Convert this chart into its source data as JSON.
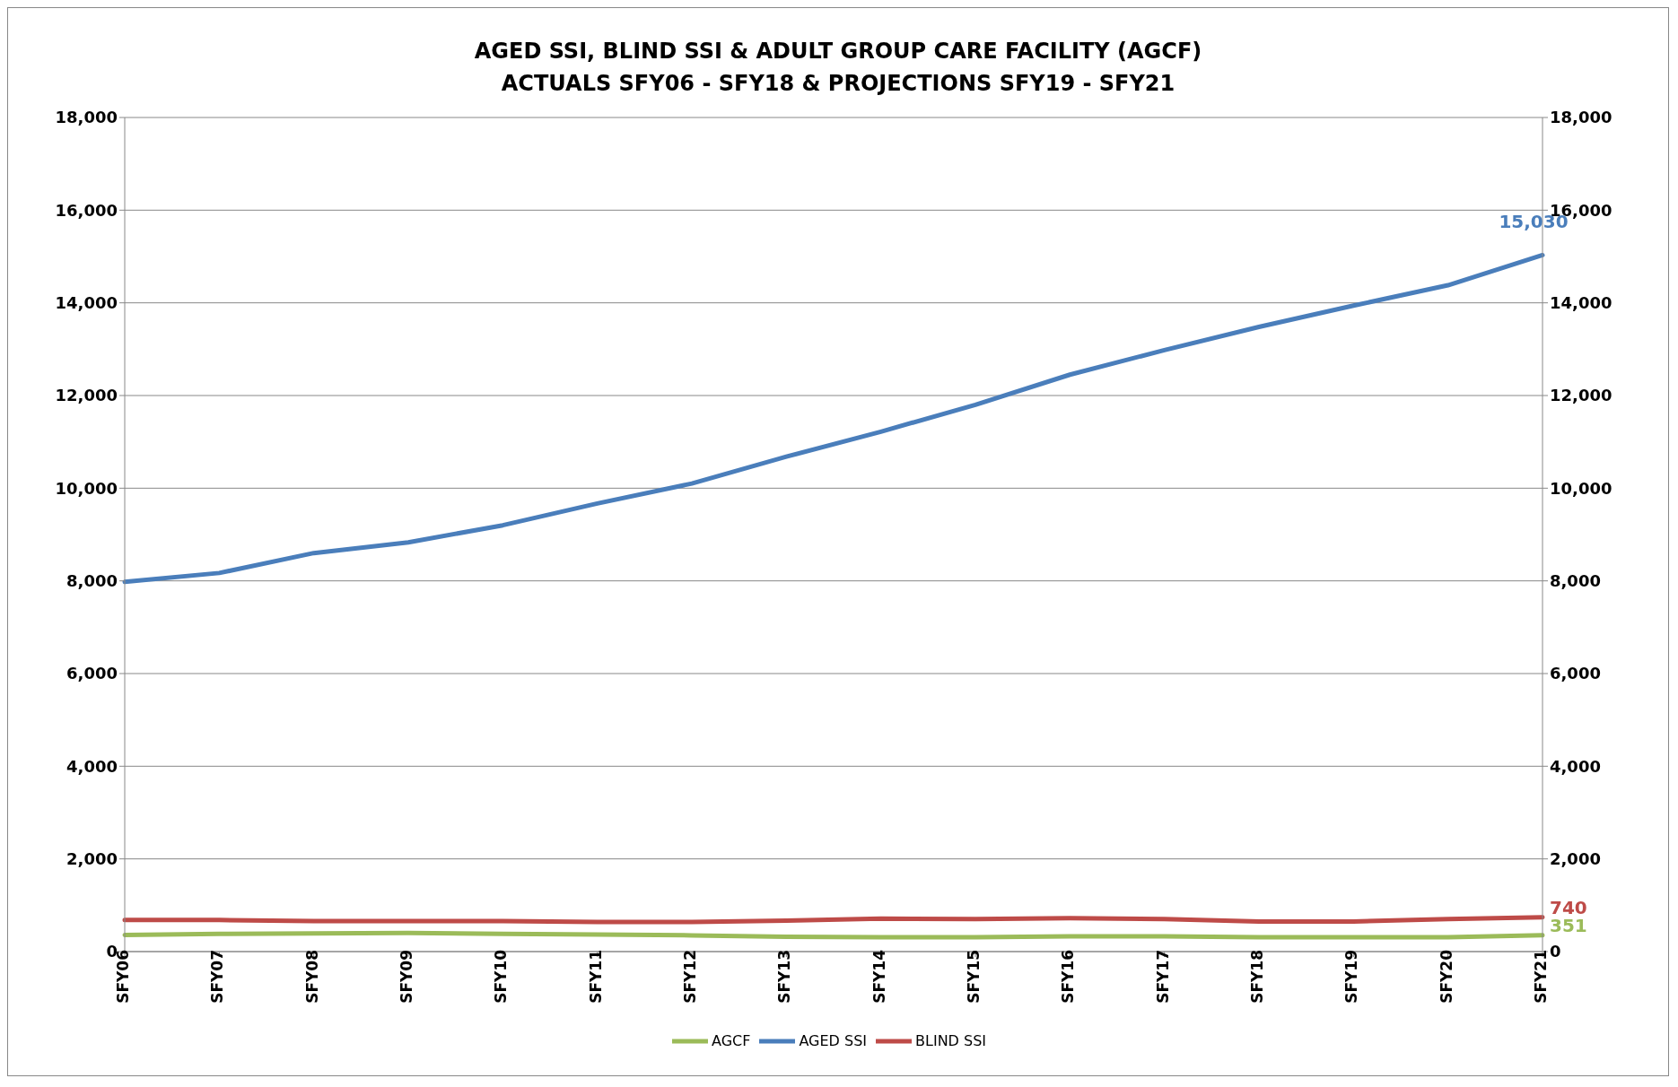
{
  "chart_data": {
    "type": "line",
    "title": "AGED SSI, BLIND SSI & ADULT GROUP CARE FACILITY (AGCF)",
    "subtitle": "ACTUALS SFY06 - SFY18 & PROJECTIONS SFY19 - SFY21",
    "categories": [
      "SFY06",
      "SFY07",
      "SFY08",
      "SFY09",
      "SFY10",
      "SFY11",
      "SFY12",
      "SFY13",
      "SFY14",
      "SFY15",
      "SFY16",
      "SFY17",
      "SFY18",
      "SFY19",
      "SFY20",
      "SFY21"
    ],
    "series": [
      {
        "name": "AGED SSI",
        "color": "#4a7ebb",
        "values": [
          7980,
          8170,
          8600,
          8830,
          9200,
          9670,
          10100,
          10680,
          11220,
          11800,
          12450,
          12980,
          13480,
          13940,
          14380,
          15030
        ],
        "value_labels": [
          null,
          null,
          null,
          null,
          null,
          null,
          null,
          null,
          null,
          null,
          null,
          null,
          null,
          null,
          null,
          "15,030"
        ]
      },
      {
        "name": "AGCF",
        "color": "#9bbb59",
        "values": [
          360,
          380,
          390,
          400,
          380,
          370,
          350,
          320,
          310,
          310,
          330,
          330,
          310,
          310,
          310,
          351
        ],
        "value_labels": [
          null,
          null,
          null,
          null,
          null,
          null,
          null,
          null,
          null,
          null,
          null,
          null,
          null,
          null,
          null,
          "351"
        ]
      },
      {
        "name": "BLIND SSI",
        "color": "#be4b48",
        "values": [
          680,
          680,
          660,
          660,
          660,
          640,
          640,
          670,
          710,
          700,
          720,
          700,
          650,
          650,
          700,
          740
        ],
        "value_labels": [
          null,
          null,
          null,
          null,
          null,
          null,
          null,
          null,
          null,
          null,
          null,
          null,
          null,
          null,
          null,
          "740"
        ]
      }
    ],
    "ylim": [
      0,
      18000
    ],
    "yticks": [
      {
        "value": 0,
        "label": "0"
      },
      {
        "value": 2000,
        "label": "2,000"
      },
      {
        "value": 4000,
        "label": "4,000"
      },
      {
        "value": 6000,
        "label": "6,000"
      },
      {
        "value": 8000,
        "label": "8,000"
      },
      {
        "value": 10000,
        "label": "10,000"
      },
      {
        "value": 12000,
        "label": "12,000"
      },
      {
        "value": 14000,
        "label": "14,000"
      },
      {
        "value": 16000,
        "label": "16,000"
      },
      {
        "value": 18000,
        "label": "18,000"
      }
    ],
    "y2lim": [
      0,
      18000
    ],
    "y2ticks": [
      {
        "value": 0,
        "label": "0"
      },
      {
        "value": 2000,
        "label": "2,000"
      },
      {
        "value": 4000,
        "label": "4,000"
      },
      {
        "value": 6000,
        "label": "6,000"
      },
      {
        "value": 8000,
        "label": "8,000"
      },
      {
        "value": 10000,
        "label": "10,000"
      },
      {
        "value": 12000,
        "label": "12,000"
      },
      {
        "value": 14000,
        "label": "14,000"
      },
      {
        "value": 16000,
        "label": "16,000"
      },
      {
        "value": 18000,
        "label": "18,000"
      }
    ],
    "grid": "y",
    "legend": "bottom",
    "marker": "none",
    "line_style": "solid"
  }
}
